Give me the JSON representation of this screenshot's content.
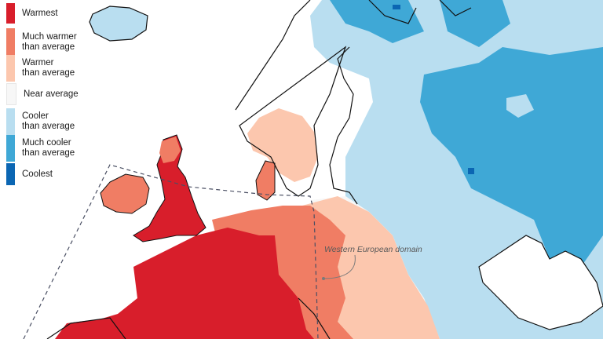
{
  "legend": {
    "items": [
      {
        "label": "Warmest",
        "color": "#d81e2b"
      },
      {
        "label": "Much warmer\nthan average",
        "color": "#f07d64"
      },
      {
        "label": "Warmer\nthan average",
        "color": "#fcc7ae"
      },
      {
        "label": "Near average",
        "color": "#f7f7f7"
      },
      {
        "label": "Cooler\nthan average",
        "color": "#b9def0"
      },
      {
        "label": "Much cooler\nthan average",
        "color": "#3fa8d6"
      },
      {
        "label": "Coolest",
        "color": "#0b66b3"
      }
    ]
  },
  "map": {
    "region": "Europe",
    "annotation": "Western European domain",
    "domain_boundary_style": "dashed",
    "colors": {
      "sea": "#ffffff",
      "coastline": "#111111",
      "domain_line": "#4a4f63"
    }
  }
}
